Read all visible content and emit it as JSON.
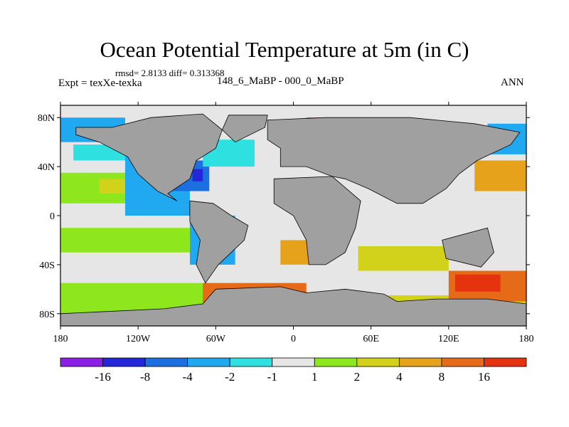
{
  "title": "Ocean Potential Temperature at 5m (in C)",
  "stats": "rmsd= 2.8133  diff= 0.313368",
  "experiment": "Expt = texXe-texka",
  "period": "148_6_MaBP - 000_0_MaBP",
  "season": "ANN",
  "map": {
    "projection": "cylindrical-equidistant",
    "lon_range": [
      -180,
      180
    ],
    "lat_range": [
      -90,
      90
    ],
    "lat_ticks": [
      {
        "value": 80,
        "label": "80N"
      },
      {
        "value": 40,
        "label": "40N"
      },
      {
        "value": 0,
        "label": "0"
      },
      {
        "value": -40,
        "label": "40S"
      },
      {
        "value": -80,
        "label": "80S"
      }
    ],
    "lon_ticks": [
      {
        "value": -180,
        "label": "180"
      },
      {
        "value": -120,
        "label": "120W"
      },
      {
        "value": -60,
        "label": "60W"
      },
      {
        "value": 0,
        "label": "0"
      },
      {
        "value": 60,
        "label": "60E"
      },
      {
        "value": 120,
        "label": "120E"
      },
      {
        "value": 180,
        "label": "180"
      }
    ],
    "land_color": "#a0a0a0",
    "regions": [
      {
        "lon": [
          -180,
          180
        ],
        "lat": [
          -90,
          90
        ],
        "level": 5
      },
      {
        "lon": [
          -180,
          -130
        ],
        "lat": [
          60,
          80
        ],
        "level": 3
      },
      {
        "lon": [
          -170,
          -120
        ],
        "lat": [
          45,
          58
        ],
        "level": 4
      },
      {
        "lon": [
          -180,
          -100
        ],
        "lat": [
          10,
          35
        ],
        "level": 6
      },
      {
        "lon": [
          -150,
          -110
        ],
        "lat": [
          18,
          30
        ],
        "level": 7
      },
      {
        "lon": [
          -130,
          -80
        ],
        "lat": [
          0,
          50
        ],
        "level": 3
      },
      {
        "lon": [
          -95,
          -65
        ],
        "lat": [
          20,
          45
        ],
        "level": 2
      },
      {
        "lon": [
          -78,
          -70
        ],
        "lat": [
          28,
          38
        ],
        "level": 1
      },
      {
        "lon": [
          -80,
          -45
        ],
        "lat": [
          -40,
          0
        ],
        "level": 3
      },
      {
        "lon": [
          -70,
          -30
        ],
        "lat": [
          40,
          62
        ],
        "level": 4
      },
      {
        "lon": [
          -180,
          -80
        ],
        "lat": [
          -30,
          -10
        ],
        "level": 6
      },
      {
        "lon": [
          -180,
          0
        ],
        "lat": [
          -90,
          -55
        ],
        "level": 6
      },
      {
        "lon": [
          -70,
          10
        ],
        "lat": [
          -75,
          -55
        ],
        "level": 9
      },
      {
        "lon": [
          -40,
          10
        ],
        "lat": [
          -70,
          -62
        ],
        "level": 10
      },
      {
        "lon": [
          10,
          180
        ],
        "lat": [
          -90,
          -65
        ],
        "level": 7
      },
      {
        "lon": [
          50,
          120
        ],
        "lat": [
          -45,
          -25
        ],
        "level": 7
      },
      {
        "lon": [
          120,
          180
        ],
        "lat": [
          -70,
          -45
        ],
        "level": 9
      },
      {
        "lon": [
          125,
          160
        ],
        "lat": [
          -62,
          -48
        ],
        "level": 10
      },
      {
        "lon": [
          140,
          180
        ],
        "lat": [
          20,
          45
        ],
        "level": 8
      },
      {
        "lon": [
          150,
          180
        ],
        "lat": [
          50,
          75
        ],
        "level": 3
      },
      {
        "lon": [
          10,
          55
        ],
        "lat": [
          62,
          80
        ],
        "level": 2
      },
      {
        "lon": [
          -10,
          25
        ],
        "lat": [
          -40,
          -20
        ],
        "level": 8
      }
    ],
    "land": [
      [
        [
          -168,
          72
        ],
        [
          -140,
          72
        ],
        [
          -110,
          80
        ],
        [
          -70,
          83
        ],
        [
          -55,
          70
        ],
        [
          -60,
          55
        ],
        [
          -75,
          45
        ],
        [
          -80,
          30
        ],
        [
          -97,
          18
        ],
        [
          -90,
          12
        ],
        [
          -105,
          20
        ],
        [
          -120,
          34
        ],
        [
          -128,
          48
        ],
        [
          -150,
          60
        ],
        [
          -168,
          66
        ]
      ],
      [
        [
          -80,
          12
        ],
        [
          -62,
          10
        ],
        [
          -48,
          0
        ],
        [
          -35,
          -8
        ],
        [
          -38,
          -20
        ],
        [
          -48,
          -30
        ],
        [
          -58,
          -40
        ],
        [
          -68,
          -55
        ],
        [
          -75,
          -40
        ],
        [
          -72,
          -20
        ],
        [
          -80,
          -5
        ]
      ],
      [
        [
          -20,
          78
        ],
        [
          25,
          80
        ],
        [
          90,
          80
        ],
        [
          140,
          75
        ],
        [
          175,
          68
        ],
        [
          168,
          58
        ],
        [
          142,
          45
        ],
        [
          128,
          34
        ],
        [
          118,
          22
        ],
        [
          100,
          10
        ],
        [
          80,
          10
        ],
        [
          58,
          22
        ],
        [
          40,
          30
        ],
        [
          30,
          32
        ],
        [
          10,
          40
        ],
        [
          -10,
          40
        ],
        [
          -10,
          55
        ],
        [
          -20,
          62
        ]
      ],
      [
        [
          -15,
          30
        ],
        [
          30,
          32
        ],
        [
          52,
          12
        ],
        [
          48,
          -10
        ],
        [
          40,
          -30
        ],
        [
          25,
          -40
        ],
        [
          12,
          -40
        ],
        [
          10,
          -20
        ],
        [
          0,
          0
        ],
        [
          -15,
          10
        ]
      ],
      [
        [
          -60,
          -60
        ],
        [
          -10,
          -58
        ],
        [
          10,
          -63
        ],
        [
          40,
          -60
        ],
        [
          70,
          -64
        ],
        [
          80,
          -70
        ],
        [
          110,
          -68
        ],
        [
          150,
          -68
        ],
        [
          180,
          -72
        ],
        [
          180,
          -90
        ],
        [
          -180,
          -90
        ],
        [
          -180,
          -80
        ],
        [
          -100,
          -76
        ],
        [
          -70,
          -72
        ]
      ],
      [
        [
          115,
          -20
        ],
        [
          150,
          -10
        ],
        [
          155,
          -30
        ],
        [
          145,
          -42
        ],
        [
          118,
          -35
        ]
      ],
      [
        [
          -50,
          82
        ],
        [
          -20,
          82
        ],
        [
          -22,
          72
        ],
        [
          -45,
          60
        ],
        [
          -55,
          70
        ]
      ]
    ]
  },
  "legend": {
    "colors": [
      "#8a20e6",
      "#2626d9",
      "#1c6fe0",
      "#20a8f0",
      "#2fe0e0",
      "#e6e6e6",
      "#8ee61c",
      "#d2d21a",
      "#e6a21a",
      "#e66b18",
      "#e6330f"
    ],
    "labels": [
      "-16",
      "-8",
      "-4",
      "-2",
      "-1",
      "1",
      "2",
      "4",
      "8",
      "16"
    ]
  }
}
